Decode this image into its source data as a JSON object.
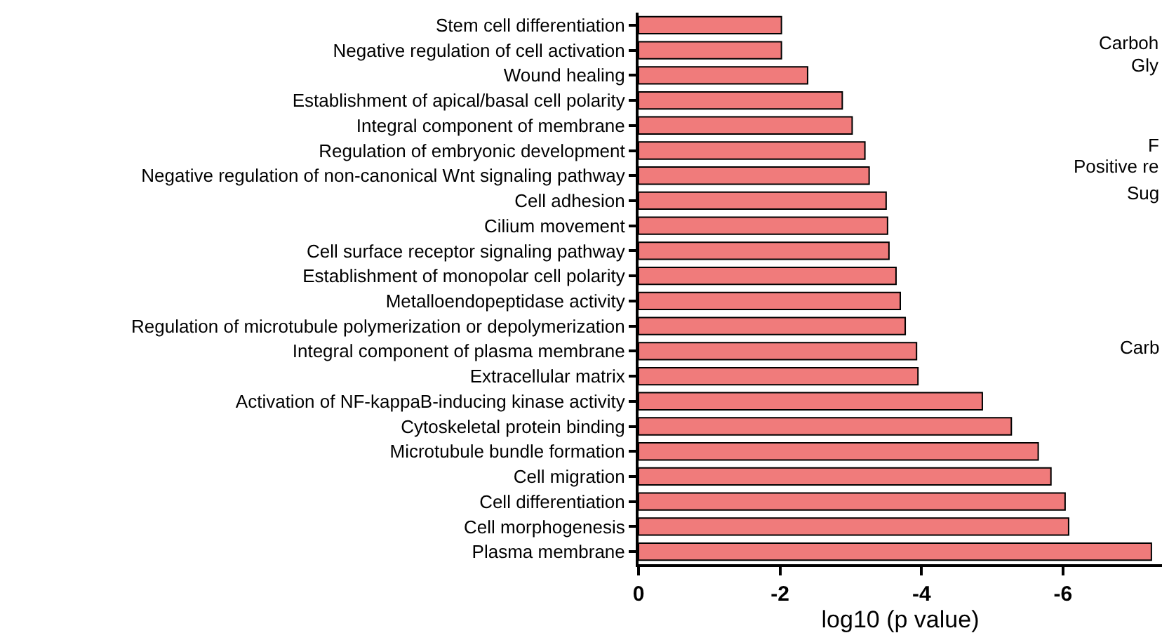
{
  "chart_data": {
    "type": "bar",
    "orientation": "horizontal",
    "xlabel": "log10 (p value)",
    "categories": [
      "Stem cell differentiation",
      "Negative regulation of cell activation",
      "Wound healing",
      "Establishment of apical/basal cell polarity",
      "Integral component of membrane",
      "Regulation of embryonic development",
      "Negative regulation of non-canonical Wnt signaling pathway",
      "Cell adhesion",
      "Cilium movement",
      "Cell surface receptor signaling pathway",
      "Establishment of monopolar cell polarity",
      "Metalloendopeptidase activity",
      "Regulation of microtubule polymerization or depolymerization",
      "Integral component of plasma membrane",
      "Extracellular matrix",
      "Activation of NF-kappaB-inducing kinase activity",
      "Cytoskeletal protein binding",
      "Microtubule bundle formation",
      "Cell migration",
      "Cell differentiation",
      "Cell morphogenesis",
      "Plasma membrane"
    ],
    "values": [
      -2.02,
      -2.02,
      -2.39,
      -2.88,
      -3.02,
      -3.2,
      -3.26,
      -3.5,
      -3.52,
      -3.54,
      -3.64,
      -3.7,
      -3.77,
      -3.93,
      -3.95,
      -4.86,
      -5.27,
      -5.65,
      -5.83,
      -6.03,
      -6.08,
      -7.25
    ],
    "color": "#f07b7b",
    "xlim": [
      0,
      -7.4
    ],
    "xticks": [
      0,
      -2,
      -4,
      -6
    ],
    "annotations": [
      "Carboh",
      "Gly",
      "F",
      "Positive re",
      "Sug",
      "Carb"
    ]
  }
}
